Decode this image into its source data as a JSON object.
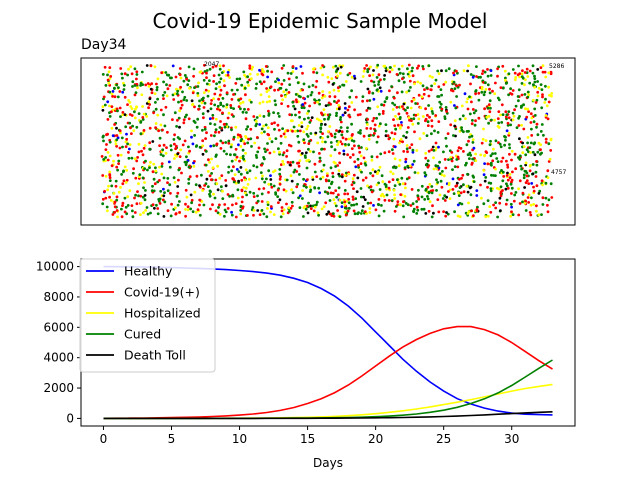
{
  "figure": {
    "title": "Covid-19 Epidemic Sample Model"
  },
  "scatter_panel": {
    "title": "Day34",
    "colors": {
      "healthy": "#0000ff",
      "infected": "#ff0000",
      "hospitalized": "#ffff00",
      "cured": "#008000",
      "dead": "#000000"
    },
    "population_share_at_day34": {
      "healthy": 231,
      "infected": 3245,
      "hospitalized": 2239,
      "cured": 3850,
      "dead": 435
    },
    "annotations": [
      "2047",
      "5286",
      "4757"
    ]
  },
  "chart_data": {
    "type": "line",
    "xlabel": "Days",
    "ylabel": "",
    "xlim": [
      -1.65,
      34.65
    ],
    "ylim": [
      -500,
      10500
    ],
    "xticks": [
      0,
      5,
      10,
      15,
      20,
      25,
      30
    ],
    "yticks": [
      0,
      2000,
      4000,
      6000,
      8000,
      10000
    ],
    "legend_position": "upper-left",
    "grid": false,
    "x": [
      0,
      1,
      2,
      3,
      4,
      5,
      6,
      7,
      8,
      9,
      10,
      11,
      12,
      13,
      14,
      15,
      16,
      17,
      18,
      19,
      20,
      21,
      22,
      23,
      24,
      25,
      26,
      27,
      28,
      29,
      30,
      31,
      32,
      33
    ],
    "series": [
      {
        "name": "Healthy",
        "color": "#0000ff",
        "values": [
          10000,
          9995,
          9985,
          9970,
          9955,
          9935,
          9910,
          9880,
          9845,
          9800,
          9745,
          9670,
          9570,
          9430,
          9230,
          8950,
          8560,
          8050,
          7400,
          6600,
          5700,
          4800,
          3900,
          3100,
          2400,
          1800,
          1300,
          950,
          680,
          480,
          350,
          280,
          250,
          231
        ]
      },
      {
        "name": "Covid-19(+)",
        "color": "#ff0000",
        "values": [
          10,
          15,
          22,
          30,
          40,
          55,
          72,
          95,
          125,
          165,
          220,
          290,
          390,
          530,
          720,
          980,
          1300,
          1700,
          2200,
          2800,
          3450,
          4100,
          4700,
          5200,
          5600,
          5900,
          6050,
          6050,
          5850,
          5500,
          5000,
          4400,
          3800,
          3245
        ]
      },
      {
        "name": "Hospitalized",
        "color": "#ffff00",
        "values": [
          0,
          0,
          1,
          2,
          3,
          4,
          6,
          8,
          10,
          13,
          17,
          22,
          30,
          40,
          55,
          75,
          100,
          135,
          180,
          240,
          310,
          400,
          500,
          620,
          760,
          910,
          1070,
          1240,
          1420,
          1610,
          1800,
          1970,
          2110,
          2239
        ]
      },
      {
        "name": "Cured",
        "color": "#008000",
        "values": [
          0,
          0,
          0,
          0,
          1,
          1,
          2,
          3,
          4,
          6,
          8,
          10,
          13,
          17,
          22,
          28,
          36,
          46,
          60,
          80,
          110,
          150,
          210,
          290,
          400,
          540,
          730,
          980,
          1290,
          1680,
          2170,
          2730,
          3300,
          3850
        ]
      },
      {
        "name": "Death Toll",
        "color": "#000000",
        "values": [
          0,
          0,
          0,
          0,
          0,
          0,
          1,
          1,
          1,
          2,
          2,
          3,
          4,
          5,
          7,
          9,
          12,
          16,
          21,
          28,
          37,
          48,
          62,
          80,
          100,
          125,
          155,
          190,
          230,
          275,
          320,
          365,
          405,
          435
        ]
      }
    ]
  }
}
